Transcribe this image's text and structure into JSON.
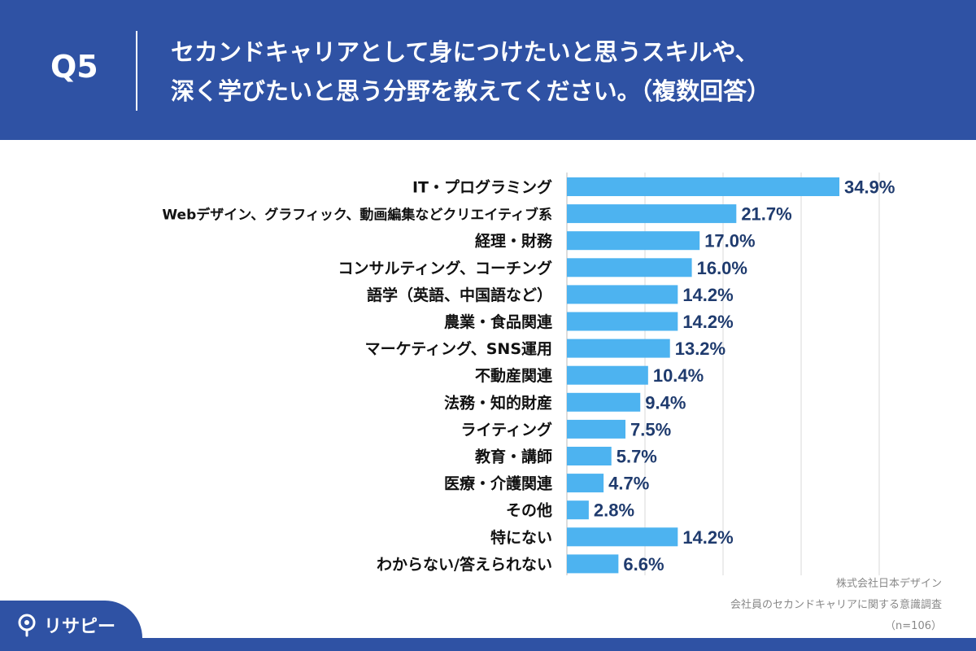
{
  "header": {
    "q_label": "Q5",
    "title_line1": "セカンドキャリアとして身につけたいと思うスキルや、",
    "title_line2": "深く学びたいと思う分野を教えてください。（複数回答）"
  },
  "chart_data": {
    "type": "bar",
    "orientation": "horizontal",
    "title": "セカンドキャリアとして身につけたいと思うスキルや、深く学びたいと思う分野を教えてください。（複数回答）",
    "xlabel": "",
    "ylabel": "",
    "xlim": [
      0,
      40
    ],
    "grid": true,
    "categories": [
      "IT・プログラミング",
      "Webデザイン、グラフィック、動画編集などクリエイティブ系",
      "経理・財務",
      "コンサルティング、コーチング",
      "語学（英語、中国語など）",
      "農業・食品関連",
      "マーケティング、SNS運用",
      "不動産関連",
      "法務・知的財産",
      "ライティング",
      "教育・講師",
      "医療・介護関連",
      "その他",
      "特にない",
      "わからない/答えられない"
    ],
    "values": [
      34.9,
      21.7,
      17.0,
      16.0,
      14.2,
      14.2,
      13.2,
      10.4,
      9.4,
      7.5,
      5.7,
      4.7,
      2.8,
      14.2,
      6.6
    ],
    "value_labels": [
      "34.9%",
      "21.7%",
      "17.0%",
      "16.0%",
      "14.2%",
      "14.2%",
      "13.2%",
      "10.4%",
      "9.4%",
      "7.5%",
      "5.7%",
      "4.7%",
      "2.8%",
      "14.2%",
      "6.6%"
    ],
    "bar_color": "#4db3f0",
    "label_color": "#1f3b6e"
  },
  "footer": {
    "company": "株式会社日本デザイン",
    "survey": "会社員のセカンドキャリアに関する意識調査",
    "sample": "（n=106）"
  },
  "logo": {
    "text": "リサピー",
    "icon": "location-pin-icon"
  },
  "colors": {
    "brand_blue": "#2f52a4",
    "bar": "#4db3f0",
    "grid": "#d9d9d9"
  }
}
